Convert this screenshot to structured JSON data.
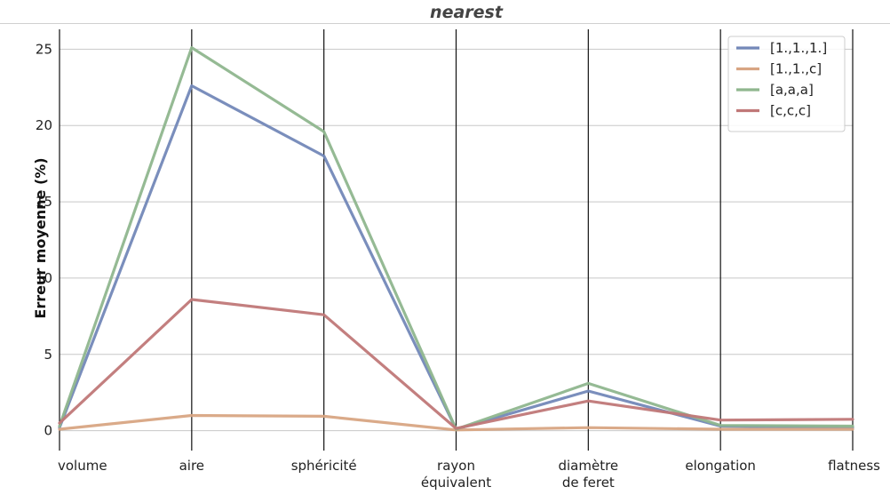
{
  "chart_data": {
    "type": "line",
    "title": "nearest",
    "ylabel": "Erreur moyenne (%)",
    "xlabel": "",
    "categories": [
      [
        "volume"
      ],
      [
        "aire"
      ],
      [
        "sphéricité"
      ],
      [
        "rayon",
        "équivalent"
      ],
      [
        "diamètre",
        "de feret"
      ],
      [
        "elongation"
      ],
      [
        "flatness"
      ]
    ],
    "ylim": [
      -1.3,
      26.3
    ],
    "yticks": [
      0,
      5,
      10,
      15,
      20,
      25
    ],
    "grid": "horizontal",
    "vertical_axis_lines": true,
    "legend_position": "top-right",
    "series": [
      {
        "name": "[1.,1.,1.]",
        "color": "#7388b8",
        "values": [
          0.2,
          22.6,
          18.0,
          0.1,
          2.6,
          0.3,
          0.2
        ]
      },
      {
        "name": "[1.,1.,c]",
        "color": "#d8a583",
        "values": [
          0.1,
          1.0,
          0.95,
          0.05,
          0.2,
          0.1,
          0.1
        ]
      },
      {
        "name": "[a,a,a]",
        "color": "#8fb68e",
        "values": [
          0.3,
          25.1,
          19.6,
          0.1,
          3.1,
          0.35,
          0.3
        ]
      },
      {
        "name": "[c,c,c]",
        "color": "#c07878",
        "values": [
          0.5,
          8.6,
          7.6,
          0.15,
          1.95,
          0.7,
          0.75
        ]
      }
    ]
  }
}
